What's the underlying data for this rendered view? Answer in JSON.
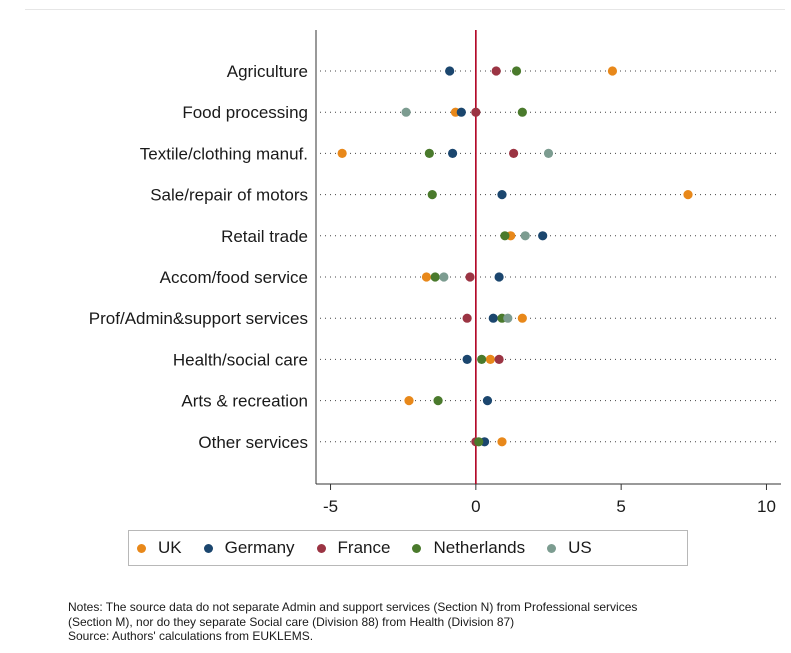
{
  "chart_data": {
    "type": "scatter",
    "orientation": "horizontal-dot-plot",
    "categories": [
      "Agriculture",
      "Food processing",
      "Textile/clothing manuf.",
      "Sale/repair of motors",
      "Retail trade",
      "Accom/food service",
      "Prof/Admin&support services",
      "Health/social care",
      "Arts & recreation",
      "Other services"
    ],
    "series": [
      {
        "name": "UK",
        "color": "#E8881A",
        "values": [
          4.7,
          -0.7,
          -4.6,
          7.3,
          1.2,
          -1.7,
          1.6,
          0.5,
          -2.3,
          0.9
        ]
      },
      {
        "name": "Germany",
        "color": "#1B466E",
        "values": [
          -0.9,
          -0.5,
          -0.8,
          0.9,
          2.3,
          0.8,
          0.6,
          -0.3,
          0.4,
          0.3
        ]
      },
      {
        "name": "France",
        "color": "#9B3443",
        "values": [
          0.7,
          0.0,
          1.3,
          null,
          null,
          -0.2,
          -0.3,
          0.8,
          null,
          0.0
        ]
      },
      {
        "name": "Netherlands",
        "color": "#4A7A2C",
        "values": [
          1.4,
          1.6,
          -1.6,
          -1.5,
          1.0,
          -1.4,
          0.9,
          0.2,
          -1.3,
          0.1
        ]
      },
      {
        "name": "US",
        "color": "#7C9C90",
        "values": [
          null,
          -2.4,
          2.5,
          null,
          1.7,
          -1.1,
          1.1,
          null,
          null,
          null
        ]
      }
    ],
    "xlim": [
      -5.5,
      10.5
    ],
    "xticks": [
      -5,
      0,
      5,
      10
    ],
    "reference_line": {
      "x": 0,
      "color": "#B00020"
    },
    "grid": "dotted horizontal lines per category",
    "legend_position": "bottom"
  },
  "notes": {
    "line1": "Notes: The source data do not separate Admin and support services (Section N) from Professional services",
    "line2": "(Section M), nor do they separate Social care (Division 88) from Health (Division 87)",
    "line3": "Source: Authors' calculations from EUKLEMS."
  }
}
